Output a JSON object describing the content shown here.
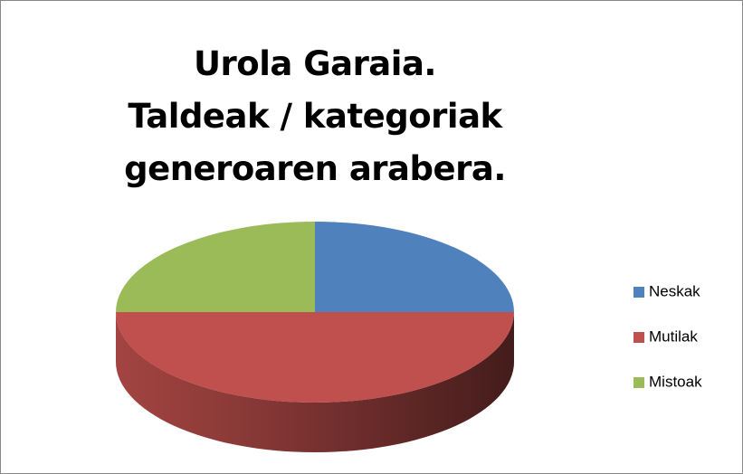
{
  "chart_data": {
    "type": "pie",
    "title": "Urola Garaia.\nTaldeak / kategoriak\ngeneroaren arabera.",
    "categories": [
      "Neskak",
      "Mutilak",
      "Mistoak"
    ],
    "values": [
      25,
      50,
      25
    ],
    "colors": [
      "#4f81bd",
      "#c0504d",
      "#9bbb59"
    ],
    "legend": "right"
  }
}
